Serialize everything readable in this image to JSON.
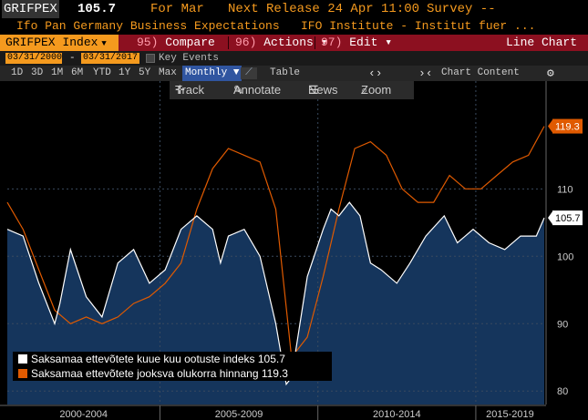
{
  "header": {
    "ticker": "GRIFPEX",
    "last_value": "105.7",
    "for_period": "For Mar",
    "next_release": "Next Release 24 Apr 11:00",
    "survey": "Survey --",
    "description_left": "Ifo Pan Germany Business Expectations",
    "description_right": "IFO Institute - Institut fuer ..."
  },
  "menu": {
    "index_tab": "GRIFPEX Index",
    "compare_num": "95)",
    "compare": "Compare",
    "actions_num": "96)",
    "actions": "Actions",
    "edit_num": "97)",
    "edit": "Edit",
    "chart_type": "Line Chart"
  },
  "range": {
    "start": "03/31/2000",
    "end": "03/31/2017",
    "key_events": "Key Events"
  },
  "periods": [
    "1D",
    "3D",
    "1M",
    "6M",
    "YTD",
    "1Y",
    "5Y",
    "Max"
  ],
  "frequency": "Monthly",
  "table_label": "Table",
  "chart_content_label": "Chart Content",
  "tools": {
    "track": "Track",
    "annotate": "Annotate",
    "news": "News",
    "zoom": "Zoom"
  },
  "colors": {
    "expectations": "#ffffff",
    "expectations_fill": "#15355c",
    "assessment": "#e05a00",
    "accent": "#f59a1e",
    "menu_bar": "#8c1020"
  },
  "chart_data": {
    "type": "line",
    "x_axis_labels": [
      "2000-2004",
      "2005-2009",
      "2010-2014",
      "2015-2019"
    ],
    "y_ticks": [
      80,
      90,
      100,
      110
    ],
    "ylim": [
      78,
      126
    ],
    "x_range": [
      "2000-03",
      "2017-03"
    ],
    "series": [
      {
        "name": "Saksamaa ettevõtete kuue kuu ootuste indeks",
        "last": "105.7",
        "color": "#ffffff",
        "filled": true,
        "x": [
          "2000-03",
          "2000-09",
          "2001-03",
          "2001-09",
          "2001-11",
          "2002-03",
          "2002-09",
          "2003-03",
          "2003-09",
          "2004-03",
          "2004-09",
          "2005-03",
          "2005-09",
          "2006-03",
          "2006-09",
          "2006-12",
          "2007-03",
          "2007-09",
          "2008-03",
          "2008-09",
          "2009-01",
          "2009-03",
          "2009-09",
          "2010-03",
          "2010-06",
          "2010-09",
          "2011-01",
          "2011-05",
          "2011-09",
          "2012-01",
          "2012-07",
          "2012-12",
          "2013-06",
          "2014-01",
          "2014-06",
          "2014-12",
          "2015-06",
          "2015-12",
          "2016-06",
          "2016-12",
          "2017-03"
        ],
        "values": [
          104,
          103,
          96,
          90,
          93,
          101,
          94,
          91,
          99,
          101,
          96,
          98,
          104,
          106,
          104,
          99,
          103,
          104,
          100,
          90,
          81,
          82,
          97,
          104,
          107,
          106,
          108,
          106,
          99,
          98,
          96,
          99,
          103,
          106,
          102,
          104,
          102,
          101,
          103,
          103,
          105.7
        ]
      },
      {
        "name": "Saksamaa ettevõtete jooksva olukorra hinnang",
        "last": "119.3",
        "color": "#e05a00",
        "filled": false,
        "x": [
          "2000-03",
          "2000-09",
          "2001-03",
          "2001-09",
          "2002-03",
          "2002-09",
          "2003-03",
          "2003-09",
          "2004-03",
          "2004-09",
          "2005-03",
          "2005-09",
          "2006-03",
          "2006-09",
          "2007-03",
          "2007-09",
          "2008-03",
          "2008-09",
          "2009-03",
          "2009-09",
          "2010-03",
          "2010-09",
          "2011-03",
          "2011-09",
          "2012-03",
          "2012-09",
          "2013-03",
          "2013-09",
          "2014-03",
          "2014-09",
          "2015-03",
          "2015-09",
          "2016-03",
          "2016-09",
          "2017-03"
        ],
        "values": [
          108,
          104,
          98,
          92,
          90,
          91,
          90,
          91,
          93,
          94,
          96,
          99,
          107,
          113,
          116,
          115,
          114,
          107,
          85,
          88,
          97,
          107,
          116,
          117,
          115,
          110,
          108,
          108,
          112,
          110,
          110,
          112,
          114,
          115,
          119.3
        ]
      }
    ]
  }
}
